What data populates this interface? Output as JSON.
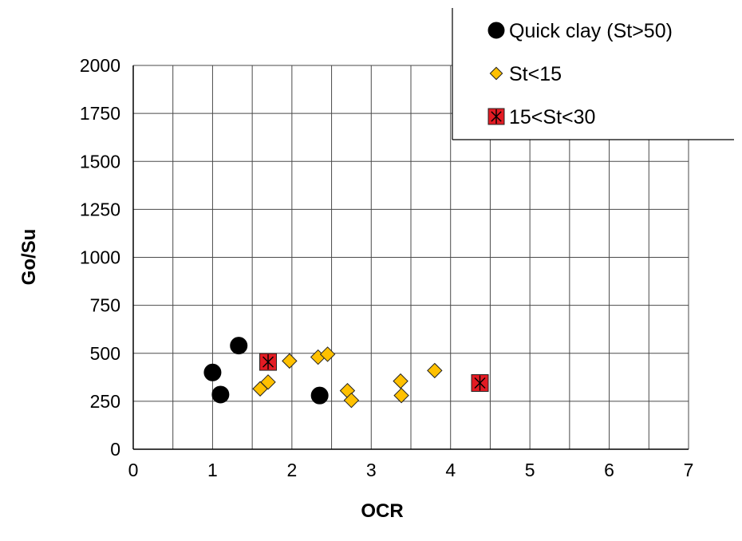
{
  "chart_data": {
    "type": "scatter",
    "title": "",
    "xlabel": "OCR",
    "ylabel": "Go/Su",
    "xlim": [
      0,
      7
    ],
    "ylim": [
      0,
      2000
    ],
    "x_ticks": [
      0,
      1,
      2,
      3,
      4,
      5,
      6,
      7
    ],
    "x_gridlines_every": 0.5,
    "y_ticks": [
      0,
      250,
      500,
      750,
      1000,
      1250,
      1500,
      1750,
      2000
    ],
    "grid": true,
    "legend_position": "top-right",
    "series": [
      {
        "name": "Quick clay (St>50)",
        "marker": "circle",
        "color": "#000000",
        "points": [
          {
            "x": 1.0,
            "y": 400
          },
          {
            "x": 1.1,
            "y": 285
          },
          {
            "x": 1.33,
            "y": 540
          },
          {
            "x": 2.35,
            "y": 280
          }
        ]
      },
      {
        "name": "St<15",
        "marker": "diamond",
        "color": "#FFC000",
        "points": [
          {
            "x": 1.6,
            "y": 315
          },
          {
            "x": 1.7,
            "y": 350
          },
          {
            "x": 1.97,
            "y": 460
          },
          {
            "x": 2.33,
            "y": 480
          },
          {
            "x": 2.45,
            "y": 495
          },
          {
            "x": 2.7,
            "y": 305
          },
          {
            "x": 2.75,
            "y": 255
          },
          {
            "x": 3.37,
            "y": 355
          },
          {
            "x": 3.38,
            "y": 280
          },
          {
            "x": 3.8,
            "y": 410
          }
        ]
      },
      {
        "name": "15<St<30",
        "marker": "square-asterisk",
        "color": "#E31B23",
        "points": [
          {
            "x": 1.7,
            "y": 455
          },
          {
            "x": 4.37,
            "y": 345
          }
        ]
      }
    ]
  }
}
